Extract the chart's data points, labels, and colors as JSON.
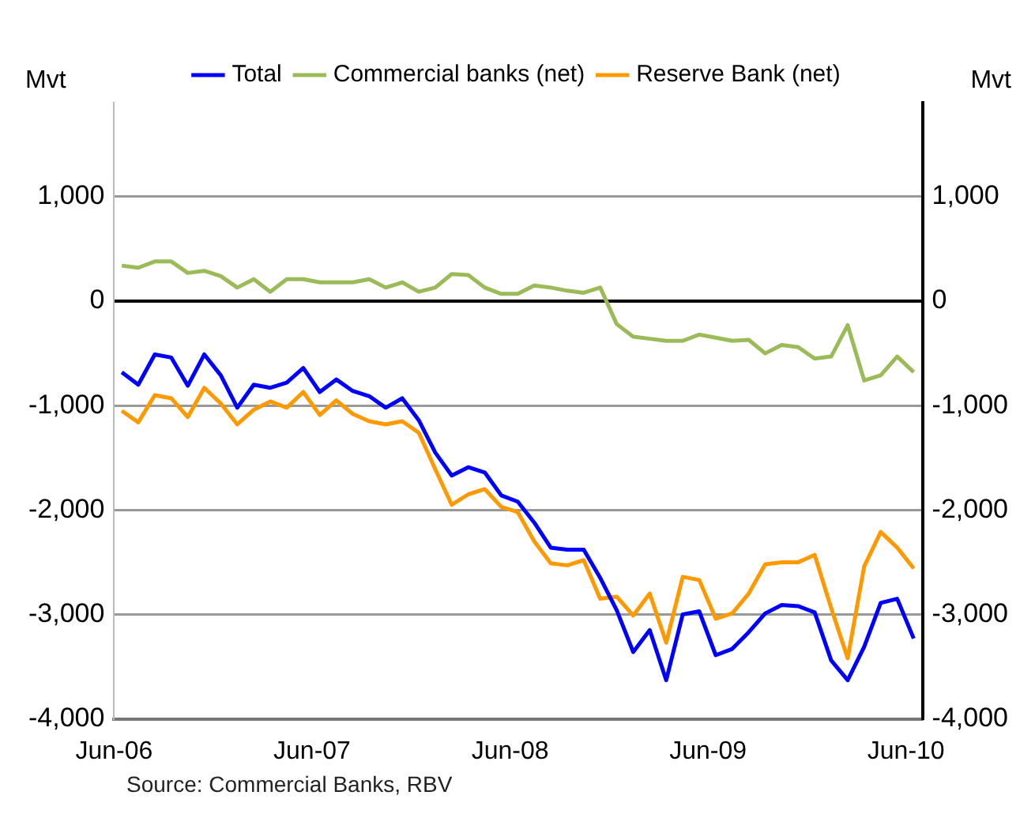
{
  "chart_data": {
    "type": "line",
    "ylabel": "Mvt",
    "y2label": "Mvt",
    "annotations": [
      "Source: Commercial Banks, RBV"
    ],
    "x": [
      "2006-06-15",
      "2006-07-15",
      "2006-08-15",
      "2006-09-15",
      "2006-10-15",
      "2006-11-15",
      "2006-12-15",
      "2007-01-15",
      "2007-02-15",
      "2007-03-15",
      "2007-04-15",
      "2007-05-15",
      "2007-06-15",
      "2007-07-15",
      "2007-08-15",
      "2007-09-15",
      "2007-10-15",
      "2007-11-15",
      "2007-12-15",
      "2008-01-15",
      "2008-02-15",
      "2008-03-15",
      "2008-04-15",
      "2008-05-15",
      "2008-06-15",
      "2008-07-15",
      "2008-08-15",
      "2008-09-15",
      "2008-10-15",
      "2008-11-15",
      "2008-12-15",
      "2009-01-15",
      "2009-02-15",
      "2009-03-15",
      "2009-04-15",
      "2009-05-15",
      "2009-06-15",
      "2009-07-15",
      "2009-08-15",
      "2009-09-15",
      "2009-10-15",
      "2009-11-15",
      "2009-12-15",
      "2010-01-15",
      "2010-02-15",
      "2010-03-15",
      "2010-04-15",
      "2010-05-15",
      "2010-06-15"
    ],
    "series": [
      {
        "name": "Total",
        "color": "#0000ff",
        "values": [
          -680,
          -800,
          -510,
          -540,
          -810,
          -510,
          -710,
          -1020,
          -800,
          -830,
          -780,
          -640,
          -870,
          -750,
          -860,
          -910,
          -1020,
          -930,
          -1140,
          -1450,
          -1670,
          -1590,
          -1640,
          -1860,
          -1920,
          -2120,
          -2360,
          -2380,
          -2380,
          -2650,
          -2960,
          -3360,
          -3150,
          -3630,
          -3000,
          -2970,
          -3390,
          -3330,
          -3170,
          -2990,
          -2910,
          -2920,
          -2980,
          -3440,
          -3630,
          -3310,
          -2890,
          -2850,
          -3230
        ]
      },
      {
        "name": "Commercial banks (net)",
        "color": "#9bbb59",
        "values": [
          340,
          320,
          380,
          380,
          270,
          290,
          240,
          130,
          210,
          90,
          210,
          210,
          180,
          180,
          180,
          210,
          130,
          180,
          90,
          130,
          260,
          250,
          130,
          70,
          70,
          150,
          130,
          100,
          80,
          130,
          -220,
          -340,
          -360,
          -380,
          -380,
          -320,
          -350,
          -380,
          -370,
          -500,
          -420,
          -440,
          -550,
          -530,
          -230,
          -760,
          -710,
          -530,
          -680
        ]
      },
      {
        "name": "Reserve Bank (net)",
        "color": "#ff9900",
        "values": [
          -1050,
          -1160,
          -900,
          -930,
          -1110,
          -830,
          -980,
          -1180,
          -1040,
          -960,
          -1020,
          -870,
          -1090,
          -950,
          -1080,
          -1150,
          -1180,
          -1150,
          -1260,
          -1610,
          -1950,
          -1850,
          -1800,
          -1970,
          -2020,
          -2300,
          -2510,
          -2530,
          -2480,
          -2850,
          -2830,
          -3010,
          -2800,
          -3270,
          -2640,
          -2670,
          -3040,
          -2990,
          -2800,
          -2520,
          -2500,
          -2500,
          -2430,
          -2940,
          -3420,
          -2540,
          -2210,
          -2360,
          -2560
        ]
      }
    ],
    "xlim": [
      "2006-06",
      "2010-07"
    ],
    "xticks": [
      {
        "value": "2006-06",
        "label": "Jun-06"
      },
      {
        "value": "2007-06",
        "label": "Jun-07"
      },
      {
        "value": "2008-06",
        "label": "Jun-08"
      },
      {
        "value": "2009-06",
        "label": "Jun-09"
      },
      {
        "value": "2010-06",
        "label": "Jun-10"
      }
    ],
    "ylim": [
      -4000,
      1900
    ],
    "yticks": [
      {
        "value": -4000,
        "label": "-4,000"
      },
      {
        "value": -3000,
        "label": "-3,000"
      },
      {
        "value": -2000,
        "label": "-2,000"
      },
      {
        "value": -1000,
        "label": "-1,000"
      },
      0,
      {
        "value": 1000,
        "label": "1,000"
      }
    ],
    "y2lim": [
      -4000,
      1900
    ],
    "y2ticks": [
      {
        "value": -4000,
        "label": "-4,000"
      },
      {
        "value": -3000,
        "label": "-3,000"
      },
      {
        "value": -2000,
        "label": "-2,000"
      },
      {
        "value": -1000,
        "label": "-1,000"
      },
      0,
      {
        "value": 1000,
        "label": "1,000"
      }
    ],
    "grid": "y",
    "legend": "top",
    "marker": "none",
    "line_style": "solid"
  }
}
